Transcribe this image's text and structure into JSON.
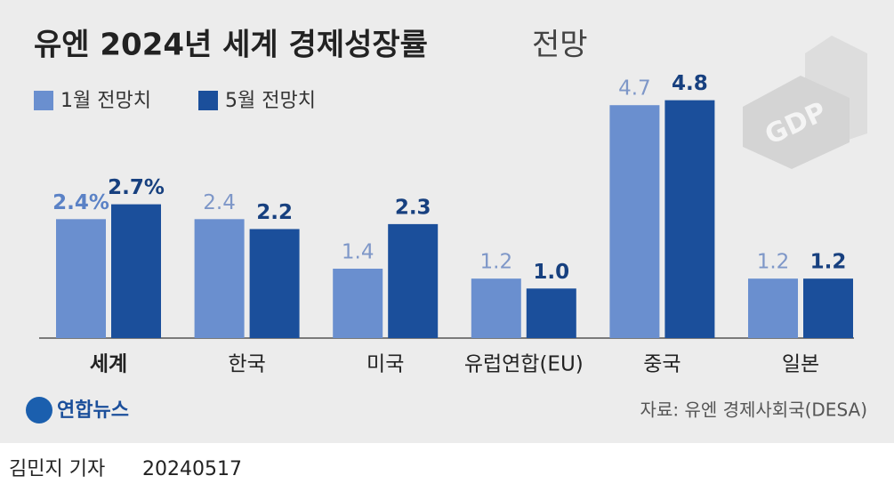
{
  "chart_data": {
    "type": "bar",
    "title": "유엔 2024년 세계 경제성장률",
    "title_suffix": "전망",
    "categories": [
      "세계",
      "한국",
      "미국",
      "유럽연합(EU)",
      "중국",
      "일본"
    ],
    "series": [
      {
        "name": "1월 전망치",
        "color": "#6a8fcf",
        "values": [
          2.4,
          2.4,
          1.4,
          1.2,
          4.7,
          1.2
        ],
        "value_labels": [
          "2.4%",
          "2.4",
          "1.4",
          "1.2",
          "4.7",
          "1.2"
        ]
      },
      {
        "name": "5월 전망치",
        "color": "#1b4f9b",
        "values": [
          2.7,
          2.2,
          2.3,
          1.0,
          4.8,
          1.2
        ],
        "value_labels": [
          "2.7%",
          "2.2",
          "2.3",
          "1.0",
          "4.8",
          "1.2"
        ]
      }
    ],
    "graphic_label": "GDP",
    "source": "자료: 유엔 경제사회국(DESA)",
    "logo": "연합뉴스",
    "byline": "김민지 기자",
    "date": "20240517"
  }
}
